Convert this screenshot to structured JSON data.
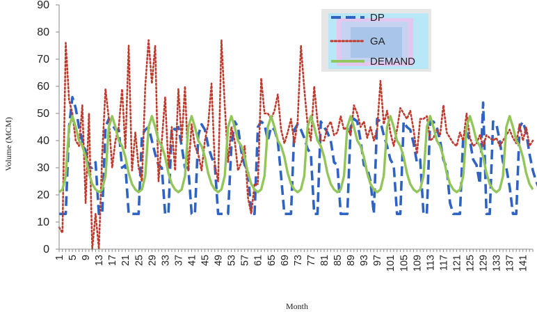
{
  "chart_data": {
    "type": "line",
    "title": "",
    "xlabel": "Month",
    "ylabel": "Volume (MCM)",
    "ylim": [
      0,
      90
    ],
    "yticks": [
      "0",
      "10",
      "20",
      "30",
      "40",
      "50",
      "60",
      "70",
      "80",
      "90"
    ],
    "xlim": [
      1,
      144
    ],
    "xticks": [
      "1",
      "5",
      "9",
      "13",
      "17",
      "21",
      "25",
      "29",
      "33",
      "37",
      "41",
      "45",
      "49",
      "53",
      "57",
      "61",
      "65",
      "69",
      "73",
      "77",
      "81",
      "85",
      "89",
      "93",
      "97",
      "101",
      "105",
      "109",
      "113",
      "117",
      "121",
      "125",
      "129",
      "133",
      "137",
      "141"
    ],
    "grid": false,
    "legend_position": "top-right",
    "series": [
      {
        "name": "DP",
        "color": "#2e63c4",
        "style": "dashed",
        "values": [
          13,
          13,
          13,
          45,
          56,
          52,
          45,
          40,
          36,
          30,
          30,
          32,
          13,
          13,
          45,
          48,
          46,
          44,
          44,
          30,
          31,
          13,
          13,
          13,
          13,
          42,
          44,
          45,
          40,
          35,
          31,
          30,
          13,
          13,
          45,
          44,
          45,
          38,
          30,
          30,
          13,
          13,
          42,
          46,
          44,
          38,
          34,
          31,
          13,
          13,
          13,
          13,
          38,
          47,
          45,
          36,
          31,
          29,
          13,
          13,
          45,
          47,
          46,
          40,
          45,
          44,
          40,
          27,
          13,
          13,
          13,
          44,
          46,
          44,
          41,
          37,
          35,
          13,
          13,
          47,
          45,
          43,
          40,
          32,
          31,
          13,
          13,
          13,
          45,
          48,
          47,
          40,
          31,
          30,
          25,
          13,
          48,
          47,
          42,
          38,
          33,
          31,
          13,
          13,
          47,
          45,
          44,
          39,
          32,
          33,
          13,
          13,
          47,
          47,
          45,
          40,
          33,
          30,
          17,
          13,
          13,
          13,
          42,
          43,
          40,
          33,
          31,
          24,
          54,
          13,
          13,
          47,
          46,
          40,
          32,
          30,
          23,
          13,
          13,
          45,
          47,
          43,
          35,
          29,
          25,
          22
        ]
      },
      {
        "name": "GA",
        "color": "#c0392b",
        "style": "dotted",
        "values": [
          8,
          6,
          76,
          55,
          50,
          40,
          38,
          53,
          17,
          50,
          0,
          13,
          0,
          35,
          59,
          48,
          30,
          40,
          45,
          59,
          37,
          75,
          29,
          43,
          30,
          25,
          60,
          77,
          61,
          75,
          25,
          40,
          56,
          30,
          45,
          29,
          59,
          40,
          60,
          29,
          46,
          38,
          35,
          29,
          40,
          46,
          61,
          31,
          25,
          77,
          53,
          32,
          45,
          40,
          29,
          32,
          38,
          19,
          13,
          24,
          24,
          63,
          50,
          50,
          48,
          51,
          57,
          44,
          39,
          43,
          48,
          39,
          47,
          75,
          59,
          46,
          40,
          60,
          47,
          40,
          40,
          45,
          47,
          42,
          43,
          49,
          44,
          45,
          42,
          53,
          50,
          45,
          47,
          41,
          45,
          40,
          44,
          62,
          46,
          51,
          43,
          38,
          44,
          52,
          50,
          48,
          51,
          44,
          35,
          48,
          48,
          49,
          40,
          41,
          44,
          42,
          53,
          43,
          41,
          39,
          38,
          43,
          40,
          50,
          41,
          38,
          39,
          42,
          38,
          42,
          41,
          40,
          41,
          38,
          40,
          42,
          44,
          41,
          39,
          46,
          40,
          45,
          38,
          40
        ]
      },
      {
        "name": "DEMAND",
        "color": "#92c65a",
        "style": "solid",
        "values": [
          21,
          22,
          27,
          45,
          49,
          45,
          40,
          38,
          34,
          28,
          24,
          22,
          21,
          22,
          27,
          45,
          49,
          45,
          40,
          38,
          34,
          28,
          24,
          22,
          21,
          22,
          27,
          45,
          49,
          45,
          40,
          38,
          34,
          28,
          24,
          22,
          21,
          22,
          27,
          45,
          49,
          45,
          40,
          38,
          34,
          28,
          24,
          22,
          21,
          22,
          27,
          45,
          49,
          45,
          40,
          38,
          34,
          28,
          24,
          22,
          21,
          22,
          27,
          45,
          49,
          45,
          40,
          38,
          34,
          28,
          24,
          22,
          21,
          22,
          27,
          45,
          49,
          45,
          40,
          38,
          34,
          28,
          24,
          22,
          21,
          22,
          27,
          45,
          49,
          45,
          40,
          38,
          34,
          28,
          24,
          22,
          21,
          22,
          27,
          45,
          49,
          45,
          40,
          38,
          34,
          28,
          24,
          22,
          21,
          22,
          27,
          45,
          49,
          45,
          40,
          38,
          34,
          28,
          24,
          22,
          21,
          22,
          27,
          45,
          49,
          45,
          40,
          38,
          34,
          28,
          24,
          22,
          21,
          22,
          27,
          45,
          49,
          45,
          40,
          38,
          34,
          28,
          24,
          22
        ]
      }
    ]
  }
}
